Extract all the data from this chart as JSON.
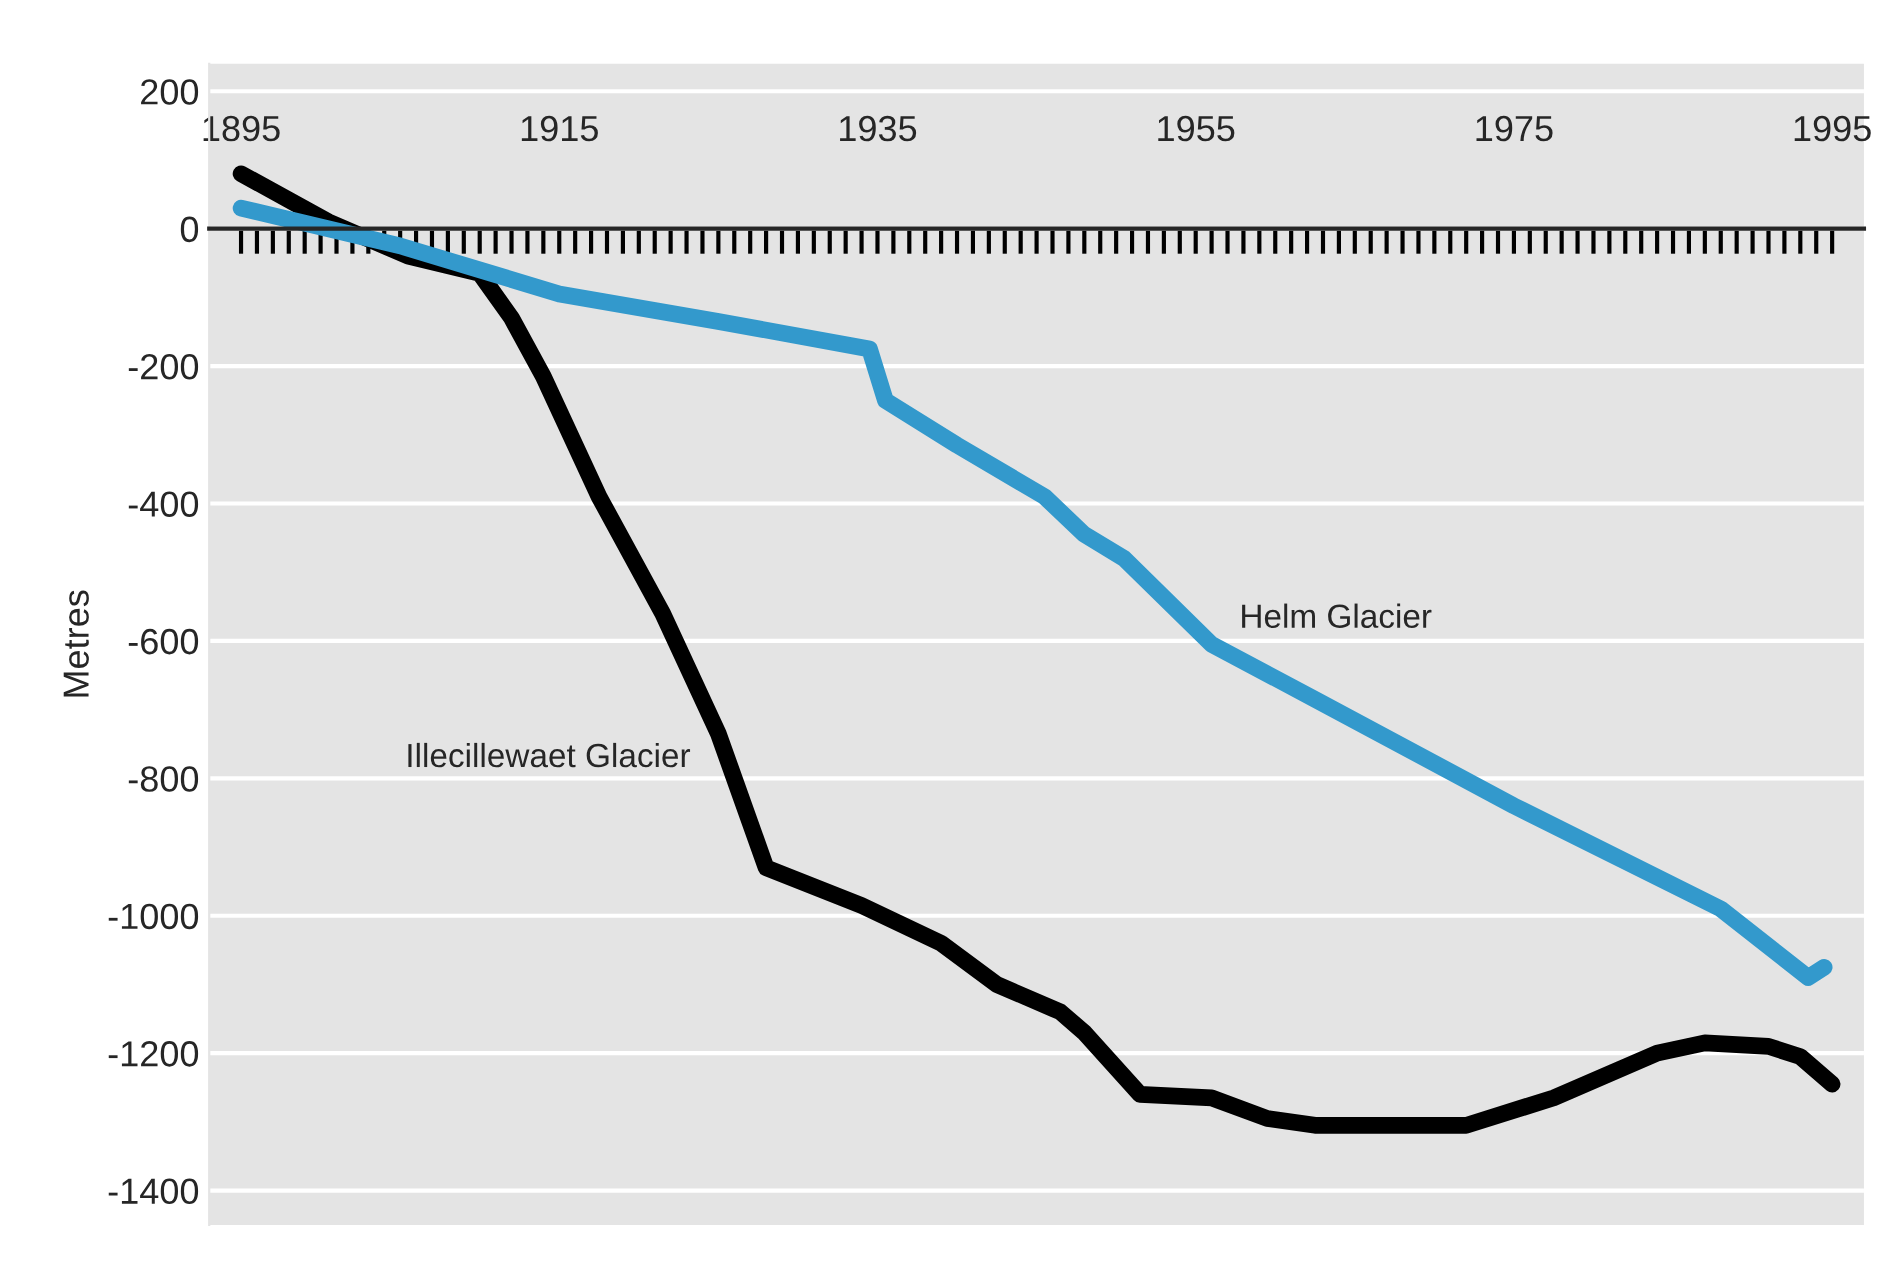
{
  "chart_data": {
    "type": "line",
    "ylabel": "Metres",
    "x": [
      1895,
      1900.5,
      1905.5,
      1910,
      1912,
      1914,
      1917.5,
      1921.5,
      1925,
      1928,
      1934,
      1939,
      1942.5,
      1946.5,
      1948,
      1951.5,
      1956,
      1959.5,
      1962.5,
      1972,
      1977.5,
      1984,
      1987,
      1991,
      1993,
      1995
    ],
    "series": [
      {
        "name": "Illecillewaet Glacier",
        "color": "#000000",
        "values": [
          80,
          10,
          -40,
          -65,
          -130,
          -215,
          -390,
          -560,
          -735,
          -930,
          -985,
          -1040,
          -1100,
          -1140,
          -1170,
          -1260,
          -1265,
          -1295,
          -1305,
          -1305,
          -1265,
          -1200,
          -1185,
          -1190,
          -1205,
          -1245
        ]
      },
      {
        "name": "Helm Glacier",
        "color": "#3399cc",
        "x": [
          1895,
          1905,
          1915,
          1925,
          1934.5,
          1935.5,
          1940,
          1945.5,
          1948,
          1950.5,
          1956,
          1962.5,
          1975,
          1988,
          1993.5,
          1994.5
        ],
        "values": [
          30,
          -25,
          -95,
          -135,
          -175,
          -250,
          -315,
          -390,
          -445,
          -480,
          -605,
          -685,
          -840,
          -990,
          -1090,
          -1075
        ]
      }
    ],
    "ylim": [
      -1450,
      240
    ],
    "yticks": [
      -1400,
      -1200,
      -1000,
      -800,
      -600,
      -400,
      -200,
      0,
      200
    ],
    "xlim": [
      1893,
      1997
    ],
    "xticks": [
      1895,
      {
        "value": 1896,
        "label": null
      },
      {
        "value": 1897,
        "label": null
      },
      {
        "value": 1898,
        "label": null
      },
      {
        "value": 1899,
        "label": null
      },
      {
        "value": 1900,
        "label": null
      },
      {
        "value": 1901,
        "label": null
      },
      {
        "value": 1902,
        "label": null
      },
      {
        "value": 1903,
        "label": null
      },
      {
        "value": 1904,
        "label": null
      },
      {
        "value": 1905,
        "label": null
      },
      {
        "value": 1906,
        "label": null
      },
      {
        "value": 1907,
        "label": null
      },
      {
        "value": 1908,
        "label": null
      },
      {
        "value": 1909,
        "label": null
      },
      {
        "value": 1910,
        "label": null
      },
      {
        "value": 1911,
        "label": null
      },
      {
        "value": 1912,
        "label": null
      },
      {
        "value": 1913,
        "label": null
      },
      {
        "value": 1914,
        "label": null
      },
      1915,
      {
        "value": 1916,
        "label": null
      },
      {
        "value": 1917,
        "label": null
      },
      {
        "value": 1918,
        "label": null
      },
      {
        "value": 1919,
        "label": null
      },
      {
        "value": 1920,
        "label": null
      },
      {
        "value": 1921,
        "label": null
      },
      {
        "value": 1922,
        "label": null
      },
      {
        "value": 1923,
        "label": null
      },
      {
        "value": 1924,
        "label": null
      },
      {
        "value": 1925,
        "label": null
      },
      {
        "value": 1926,
        "label": null
      },
      {
        "value": 1927,
        "label": null
      },
      {
        "value": 1928,
        "label": null
      },
      {
        "value": 1929,
        "label": null
      },
      {
        "value": 1930,
        "label": null
      },
      {
        "value": 1931,
        "label": null
      },
      {
        "value": 1932,
        "label": null
      },
      {
        "value": 1933,
        "label": null
      },
      {
        "value": 1934,
        "label": null
      },
      1935,
      {
        "value": 1936,
        "label": null
      },
      {
        "value": 1937,
        "label": null
      },
      {
        "value": 1938,
        "label": null
      },
      {
        "value": 1939,
        "label": null
      },
      {
        "value": 1940,
        "label": null
      },
      {
        "value": 1941,
        "label": null
      },
      {
        "value": 1942,
        "label": null
      },
      {
        "value": 1943,
        "label": null
      },
      {
        "value": 1944,
        "label": null
      },
      {
        "value": 1945,
        "label": null
      },
      {
        "value": 1946,
        "label": null
      },
      {
        "value": 1947,
        "label": null
      },
      {
        "value": 1948,
        "label": null
      },
      {
        "value": 1949,
        "label": null
      },
      {
        "value": 1950,
        "label": null
      },
      {
        "value": 1951,
        "label": null
      },
      {
        "value": 1952,
        "label": null
      },
      {
        "value": 1953,
        "label": null
      },
      {
        "value": 1954,
        "label": null
      },
      1955,
      {
        "value": 1956,
        "label": null
      },
      {
        "value": 1957,
        "label": null
      },
      {
        "value": 1958,
        "label": null
      },
      {
        "value": 1959,
        "label": null
      },
      {
        "value": 1960,
        "label": null
      },
      {
        "value": 1961,
        "label": null
      },
      {
        "value": 1962,
        "label": null
      },
      {
        "value": 1963,
        "label": null
      },
      {
        "value": 1964,
        "label": null
      },
      {
        "value": 1965,
        "label": null
      },
      {
        "value": 1966,
        "label": null
      },
      {
        "value": 1967,
        "label": null
      },
      {
        "value": 1968,
        "label": null
      },
      {
        "value": 1969,
        "label": null
      },
      {
        "value": 1970,
        "label": null
      },
      {
        "value": 1971,
        "label": null
      },
      {
        "value": 1972,
        "label": null
      },
      {
        "value": 1973,
        "label": null
      },
      {
        "value": 1974,
        "label": null
      },
      1975,
      {
        "value": 1976,
        "label": null
      },
      {
        "value": 1977,
        "label": null
      },
      {
        "value": 1978,
        "label": null
      },
      {
        "value": 1979,
        "label": null
      },
      {
        "value": 1980,
        "label": null
      },
      {
        "value": 1981,
        "label": null
      },
      {
        "value": 1982,
        "label": null
      },
      {
        "value": 1983,
        "label": null
      },
      {
        "value": 1984,
        "label": null
      },
      {
        "value": 1985,
        "label": null
      },
      {
        "value": 1986,
        "label": null
      },
      {
        "value": 1987,
        "label": null
      },
      {
        "value": 1988,
        "label": null
      },
      {
        "value": 1989,
        "label": null
      },
      {
        "value": 1990,
        "label": null
      },
      {
        "value": 1991,
        "label": null
      },
      {
        "value": 1992,
        "label": null
      },
      {
        "value": 1993,
        "label": null
      },
      {
        "value": 1994,
        "label": null
      },
      1995
    ],
    "grid": "y",
    "legend": false,
    "line_style": "solid"
  }
}
